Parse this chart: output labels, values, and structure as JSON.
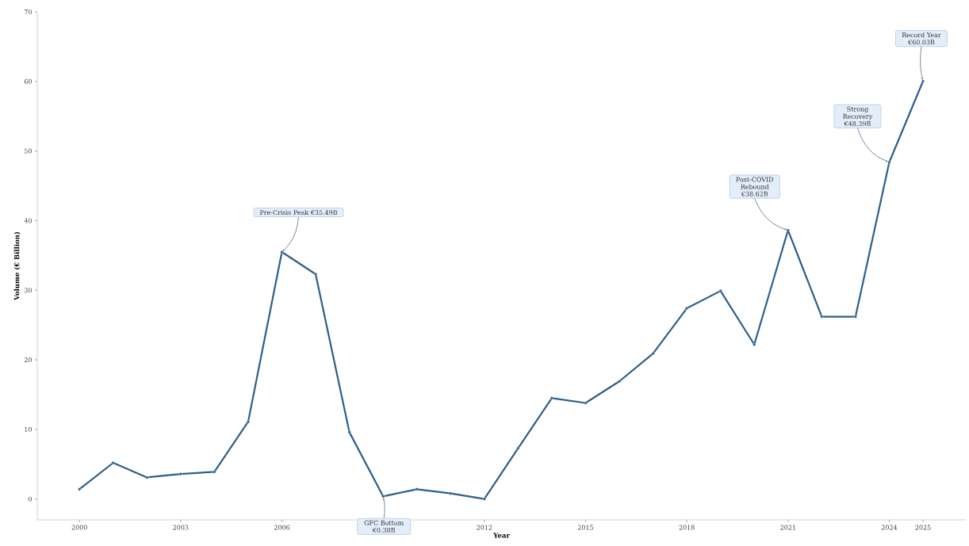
{
  "chart_data": {
    "type": "line",
    "xlabel": "Year",
    "ylabel": "Volume (€ Billion)",
    "x": [
      2000,
      2001,
      2002,
      2003,
      2004,
      2005,
      2006,
      2007,
      2008,
      2009,
      2010,
      2011,
      2012,
      2013,
      2014,
      2015,
      2016,
      2017,
      2018,
      2019,
      2020,
      2021,
      2022,
      2023,
      2024,
      2025
    ],
    "series": [
      {
        "color": "#2c5f8a",
        "values": [
          1.4,
          5.2,
          3.1,
          3.6,
          3.9,
          11.1,
          35.49,
          32.3,
          9.6,
          0.38,
          1.4,
          0.8,
          0.0,
          7.3,
          14.5,
          13.8,
          16.9,
          20.9,
          27.4,
          29.9,
          22.2,
          38.62,
          26.2,
          26.2,
          48.39,
          60.03
        ]
      }
    ],
    "xlim": [
      1998.75,
      2026.27
    ],
    "xticks": [
      2000,
      2003,
      2006,
      2012,
      2015,
      2018,
      2021,
      2024,
      2025
    ],
    "ylim": [
      -3,
      70
    ],
    "yticks": [
      0,
      10,
      20,
      30,
      40,
      50,
      60,
      70
    ],
    "marker": "circle",
    "line_style": "solid",
    "annotations": [
      {
        "text": "Pre-Crisis Peak €35.49B",
        "x": 2006,
        "y": 35.49
      },
      {
        "text": "GFC Bottom €0.38B",
        "x": 2009,
        "y": 0.38
      },
      {
        "text": "Post-COVID Rebound €38.62B",
        "x": 2021,
        "y": 38.62
      },
      {
        "text": "Strong Recovery €48.39B",
        "x": 2024,
        "y": 48.39
      },
      {
        "text": "Record Year €60.03B",
        "x": 2025,
        "y": 60.03
      }
    ]
  }
}
